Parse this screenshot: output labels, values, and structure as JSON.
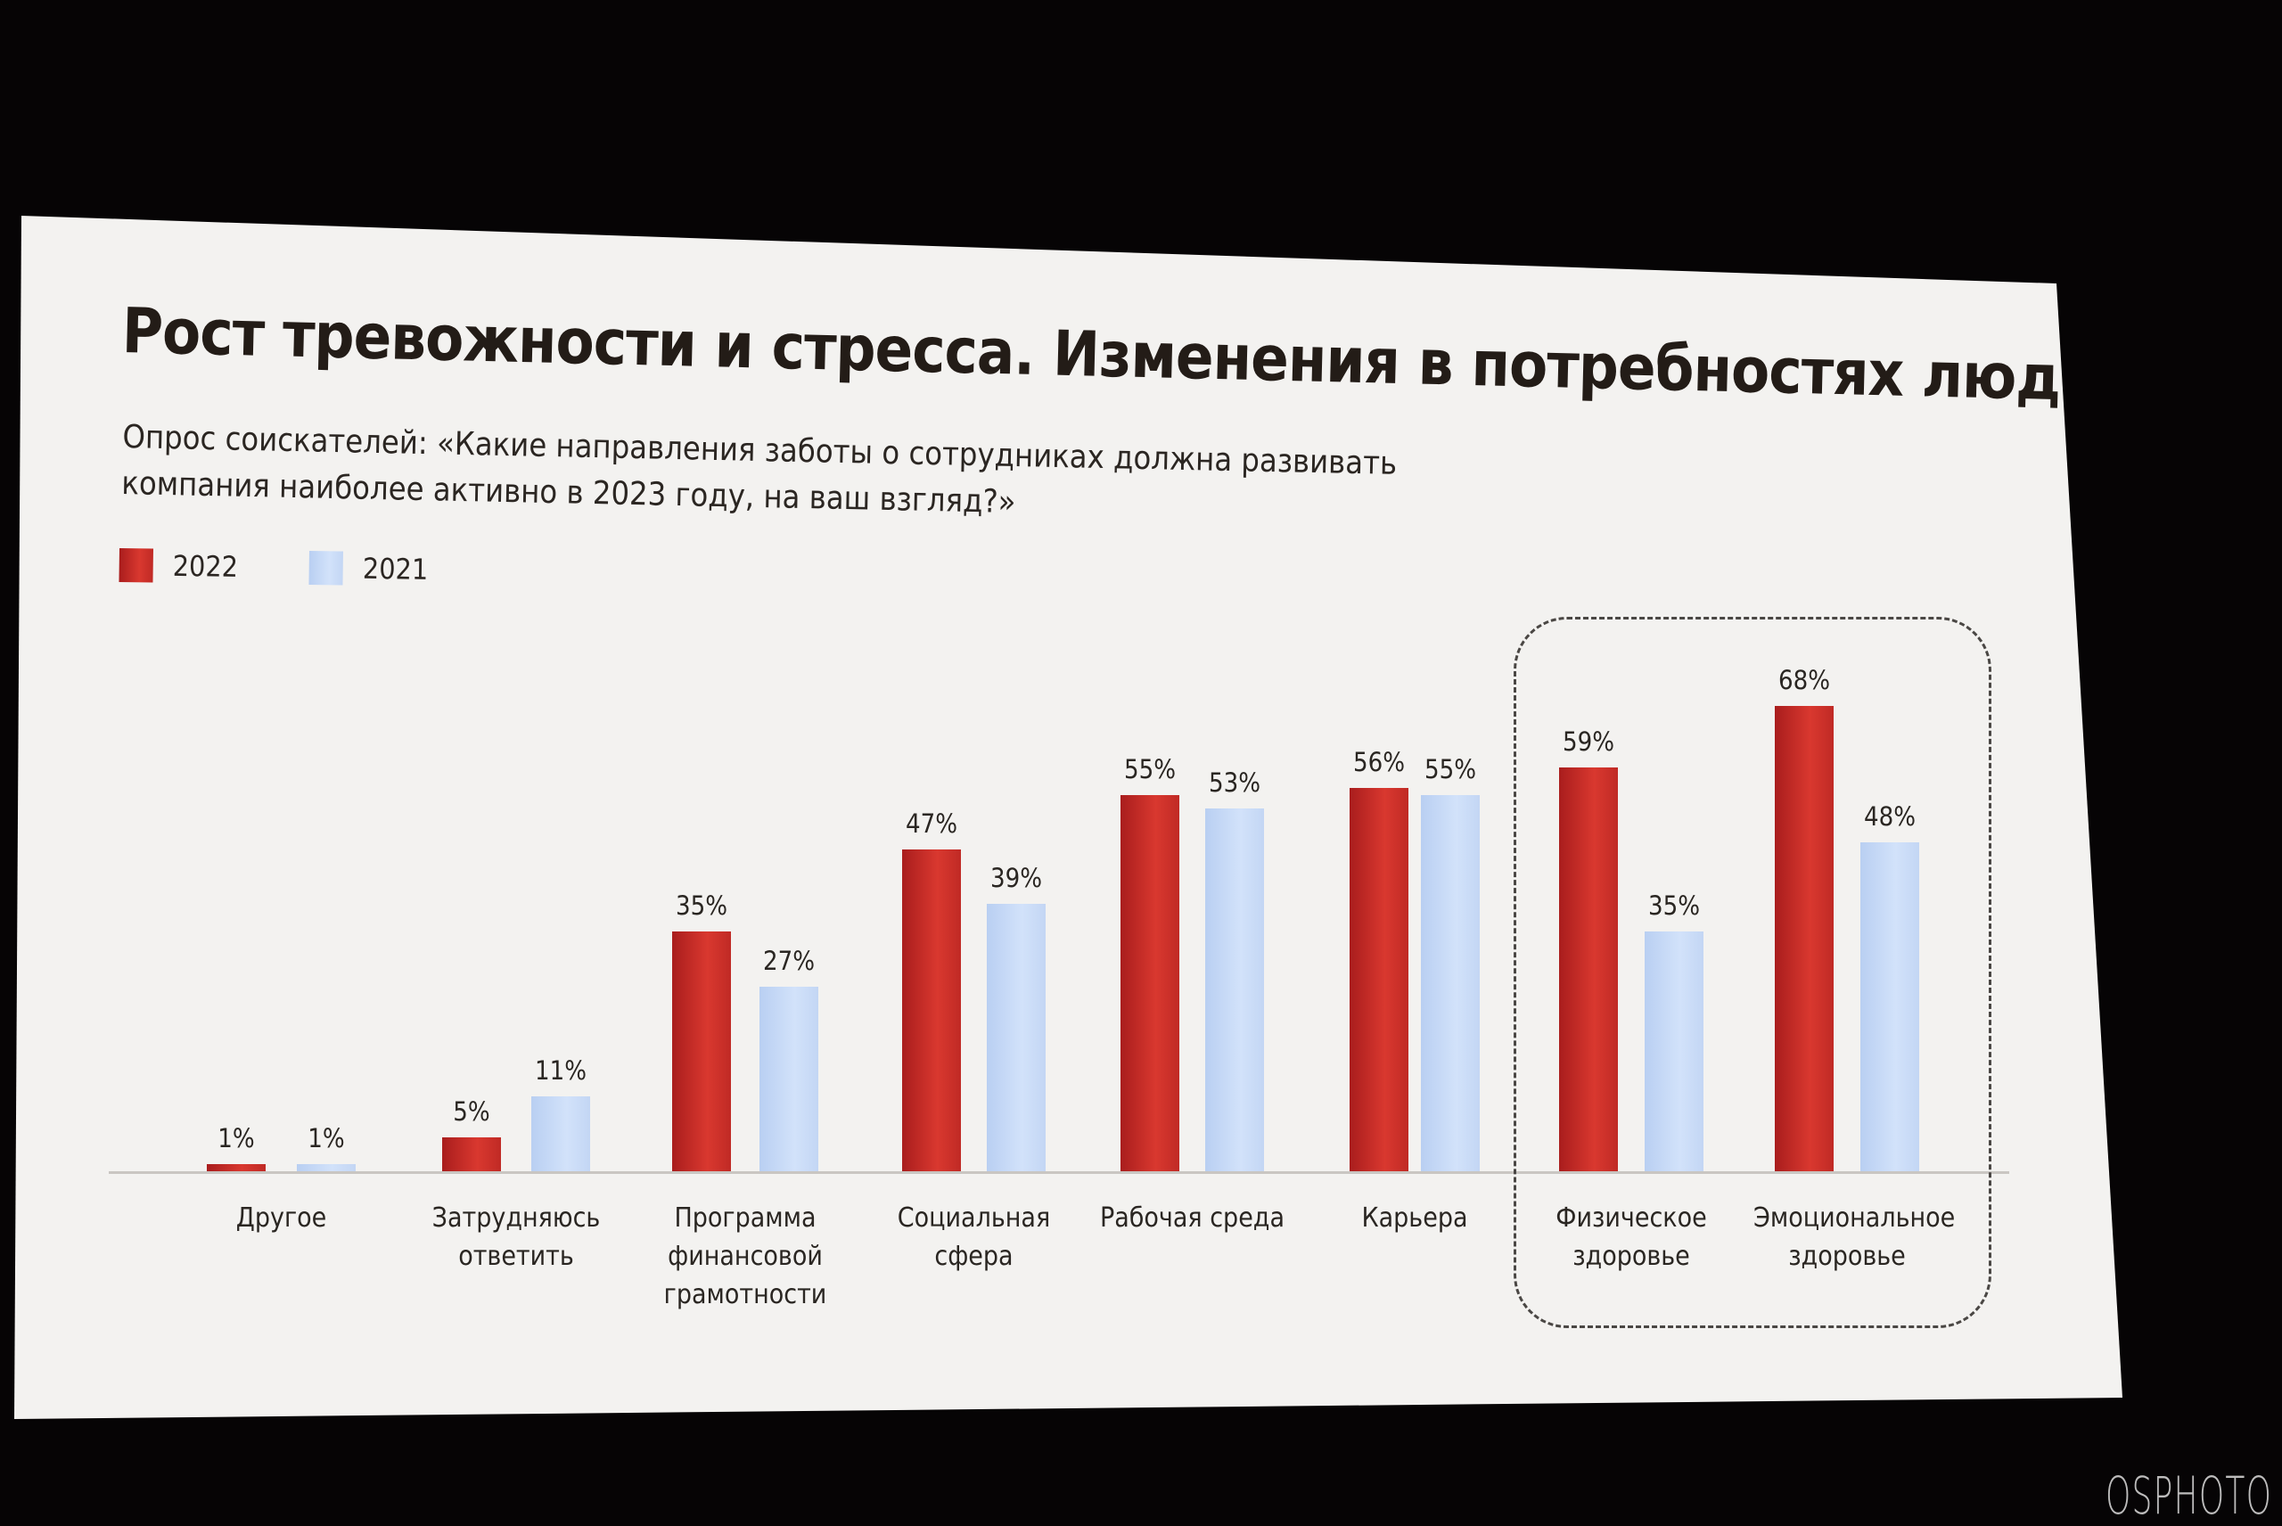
{
  "chart_data": {
    "type": "bar",
    "title": "Рост тревожности и стресса. Изменения в потребностях людей",
    "subtitle": "Опрос соискателей: «Какие направления заботы о сотрудниках должна развивать компания наиболее активно в 2023 году, на ваш взгляд?»",
    "categories": [
      "Другое",
      "Затрудняюсь ответить",
      "Программа финансовой грамотности",
      "Социальная сфера",
      "Рабочая среда",
      "Карьера",
      "Физическое здоровье",
      "Эмоциональное здоровье"
    ],
    "series": [
      {
        "name": "2022",
        "color": "#c9302c",
        "values": [
          1,
          5,
          35,
          47,
          55,
          56,
          59,
          68
        ]
      },
      {
        "name": "2021",
        "color": "#c5d8f5",
        "values": [
          1,
          11,
          27,
          39,
          53,
          55,
          35,
          48
        ]
      }
    ],
    "value_format": "{v}%",
    "ylim": [
      0,
      70
    ],
    "grid": false,
    "legend_position": "top-left",
    "highlighted_categories": [
      "Физическое здоровье",
      "Эмоциональное здоровье"
    ]
  },
  "watermark": "OSPHOTO"
}
